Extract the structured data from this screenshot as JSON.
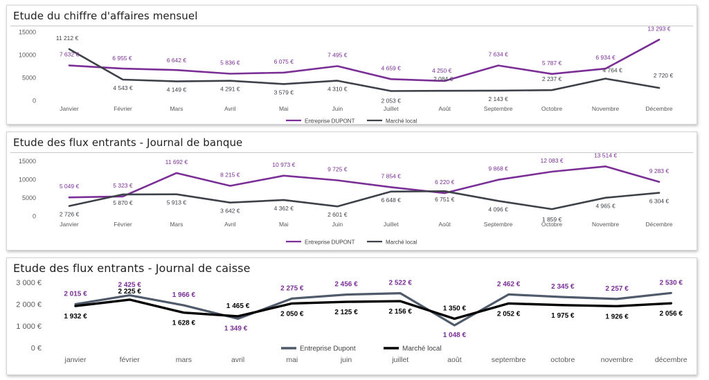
{
  "months_short": [
    "Janvier",
    "Février",
    "Mars",
    "Avril",
    "Mai",
    "Juin",
    "Juillet",
    "Août",
    "Septembre",
    "Octobre",
    "Novembre",
    "Décembre"
  ],
  "colors": {
    "purple": "#7a2e96",
    "dark": "#3d4148",
    "slate": "#4f5a6b",
    "black": "#000000",
    "axis": "#595959"
  },
  "chart_data": [
    {
      "type": "line",
      "title": "Etude du chiffre d'affaires mensuel",
      "categories": [
        "Janvier",
        "Février",
        "Mars",
        "Avril",
        "Mai",
        "Juin",
        "Juillet",
        "Août",
        "Septembre",
        "Octobre",
        "Novembre",
        "Décembre"
      ],
      "yticks": [
        "0",
        "5000",
        "10000",
        "15000"
      ],
      "ylim": [
        0,
        15000
      ],
      "grid": false,
      "legend_position": "bottom",
      "series": [
        {
          "name": "Entreprise DUPONT",
          "values": [
            7632,
            6955,
            6642,
            5836,
            6075,
            7495,
            4659,
            4250,
            7634,
            5787,
            6934,
            13293
          ],
          "labels": [
            "7 632 €",
            "6 955 €",
            "6 642 €",
            "5 836 €",
            "6 075 €",
            "7 495 €",
            "4 659 €",
            "4 250 €",
            "7 634 €",
            "5 787 €",
            "6 934 €",
            "13 293 €"
          ]
        },
        {
          "name": "Marché local",
          "values": [
            11212,
            4543,
            4149,
            4291,
            3579,
            4310,
            2053,
            2084,
            2143,
            2237,
            4764,
            2720
          ],
          "labels": [
            "11 212 €",
            "4 543 €",
            "4 149 €",
            "4 291 €",
            "3 579 €",
            "4 310 €",
            "2 053 €",
            "2 084 €",
            "2 143 €",
            "2 237 €",
            "4 764 €",
            "2 720 €"
          ]
        }
      ]
    },
    {
      "type": "line",
      "title": "Etude des flux entrants - Journal de banque",
      "categories": [
        "Janvier",
        "Février",
        "Mars",
        "Avril",
        "Mai",
        "Juin",
        "Juillet",
        "Août",
        "Septembre",
        "Octobre",
        "Novembre",
        "Décembre"
      ],
      "yticks": [
        "0",
        "5000",
        "10000",
        "15000"
      ],
      "ylim": [
        0,
        15000
      ],
      "grid": false,
      "legend_position": "bottom",
      "series": [
        {
          "name": "Entreprise DUPONT",
          "values": [
            5049,
            5323,
            11692,
            8215,
            10973,
            9725,
            7854,
            6220,
            9868,
            12083,
            13514,
            9283
          ],
          "labels": [
            "5 049 €",
            "5 323 €",
            "11 692 €",
            "8 215 €",
            "10 973 €",
            "9 725 €",
            "7 854 €",
            "6 220 €",
            "9 868 €",
            "12 083 €",
            "13 514 €",
            "9 283 €"
          ]
        },
        {
          "name": "Marché local",
          "values": [
            2726,
            5870,
            5913,
            3642,
            4362,
            2601,
            6648,
            6751,
            4096,
            1859,
            4965,
            6304
          ],
          "labels": [
            "2 726 €",
            "5 870 €",
            "5 913 €",
            "3 642 €",
            "4 362 €",
            "2 601 €",
            "6 648 €",
            "6 751 €",
            "4 096 €",
            "1 859 €",
            "4 965 €",
            "6 304 €"
          ]
        }
      ]
    },
    {
      "type": "line",
      "title": "Etude des flux entrants - Journal de caisse",
      "categories": [
        "janvier",
        "février",
        "mars",
        "avril",
        "mai",
        "juin",
        "juillet",
        "août",
        "septembre",
        "octobre",
        "novembre",
        "décembre"
      ],
      "yticks": [
        "0 €",
        "1 000 €",
        "2 000 €",
        "3 000 €"
      ],
      "ylim": [
        0,
        3000
      ],
      "grid": false,
      "legend_position": "bottom",
      "series": [
        {
          "name": "Entreprise Dupont",
          "values": [
            2015,
            2425,
            1966,
            1349,
            2275,
            2456,
            2522,
            1048,
            2462,
            2345,
            2257,
            2530
          ],
          "labels": [
            "2 015 €",
            "2 425 €",
            "1 966 €",
            "1 349 €",
            "2 275 €",
            "2 456 €",
            "2 522 €",
            "1 048 €",
            "2 462 €",
            "2 345 €",
            "2 257 €",
            "2 530 €"
          ]
        },
        {
          "name": "Marché local",
          "values": [
            1932,
            2225,
            1628,
            1465,
            2050,
            2125,
            2156,
            1350,
            2052,
            1975,
            1926,
            2056
          ],
          "labels": [
            "1 932 €",
            "2 225 €",
            "1 628 €",
            "1 465 €",
            "2 050 €",
            "2 125 €",
            "2 156 €",
            "1 350 €",
            "2 052 €",
            "1 975 €",
            "1 926 €",
            "2 056 €"
          ]
        }
      ]
    }
  ]
}
